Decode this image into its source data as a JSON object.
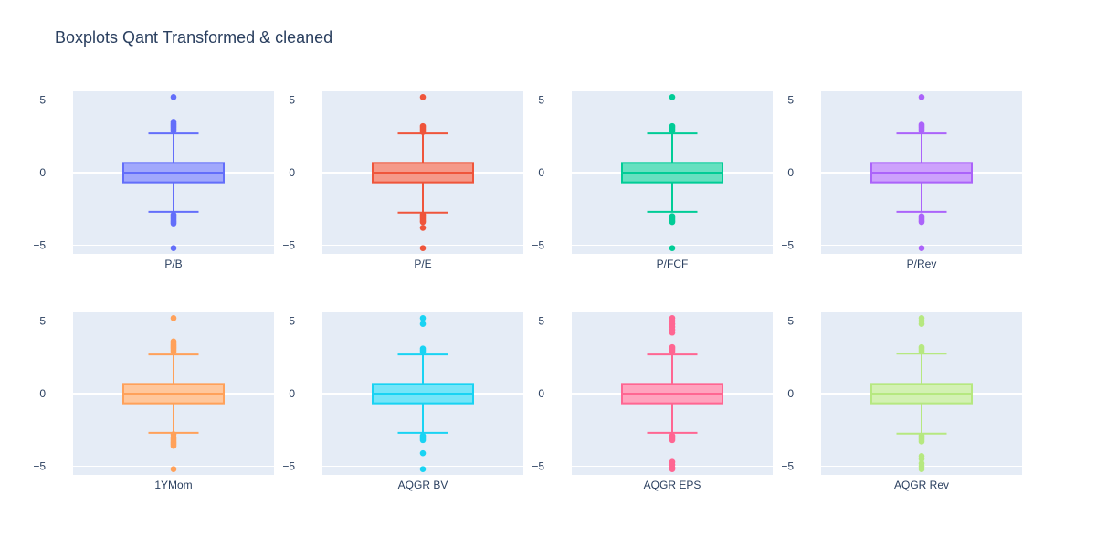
{
  "chart_data": {
    "type": "box",
    "title": "Boxplots Qant Transformed & cleaned",
    "y_ticks": [
      "5",
      "0",
      "−5"
    ],
    "y_tick_values": [
      5,
      0,
      -5
    ],
    "ylim": [
      -5.6,
      5.6
    ],
    "grid": true,
    "legend": false,
    "series": [
      {
        "name": "P/B",
        "color": "#636efa",
        "fill": "#a1a8fc",
        "q1": -0.67,
        "median": 0.0,
        "q3": 0.67,
        "lower_fence": -2.7,
        "upper_fence": 2.7,
        "outliers": [
          5.2,
          3.5,
          3.4,
          3.3,
          3.2,
          3.1,
          3.0,
          2.9,
          -2.9,
          -3.0,
          -3.1,
          -3.2,
          -3.3,
          -3.4,
          -3.5,
          -5.2
        ]
      },
      {
        "name": "P/E",
        "color": "#ef553b",
        "fill": "#f59989",
        "q1": -0.67,
        "median": 0.0,
        "q3": 0.67,
        "lower_fence": -2.75,
        "upper_fence": 2.7,
        "outliers": [
          5.2,
          3.2,
          3.1,
          3.0,
          2.9,
          2.8,
          -2.9,
          -3.0,
          -3.1,
          -3.2,
          -3.3,
          -3.4,
          -3.8,
          -5.2
        ]
      },
      {
        "name": "P/FCF",
        "color": "#00cc96",
        "fill": "#66e0c0",
        "q1": -0.67,
        "median": 0.0,
        "q3": 0.67,
        "lower_fence": -2.7,
        "upper_fence": 2.7,
        "outliers": [
          5.2,
          3.2,
          3.1,
          3.0,
          2.9,
          -3.0,
          -3.1,
          -3.2,
          -3.3,
          -3.4,
          -5.2
        ]
      },
      {
        "name": "P/Rev",
        "color": "#ab63fa",
        "fill": "#cda1fc",
        "q1": -0.67,
        "median": 0.0,
        "q3": 0.67,
        "lower_fence": -2.7,
        "upper_fence": 2.7,
        "outliers": [
          5.2,
          3.3,
          3.2,
          3.1,
          3.0,
          2.9,
          -3.0,
          -3.1,
          -3.2,
          -3.3,
          -3.4,
          -5.2
        ]
      },
      {
        "name": "1YMom",
        "color": "#ffa15a",
        "fill": "#ffc79c",
        "q1": -0.67,
        "median": 0.0,
        "q3": 0.67,
        "lower_fence": -2.7,
        "upper_fence": 2.7,
        "outliers": [
          5.2,
          3.6,
          3.5,
          3.4,
          3.3,
          3.2,
          3.1,
          3.0,
          2.9,
          -2.8,
          -3.0,
          -3.1,
          -3.2,
          -3.3,
          -3.4,
          -3.5,
          -3.6,
          -5.2
        ]
      },
      {
        "name": "AQGR BV",
        "color": "#19d3f3",
        "fill": "#75e5f8",
        "q1": -0.67,
        "median": 0.0,
        "q3": 0.67,
        "lower_fence": -2.7,
        "upper_fence": 2.7,
        "outliers": [
          5.2,
          4.8,
          3.1,
          3.0,
          2.9,
          -2.9,
          -3.0,
          -3.1,
          -3.2,
          -4.1,
          -5.2
        ]
      },
      {
        "name": "AQGR EPS",
        "color": "#ff6692",
        "fill": "#ffa3be",
        "q1": -0.67,
        "median": 0.0,
        "q3": 0.67,
        "lower_fence": -2.7,
        "upper_fence": 2.7,
        "outliers": [
          5.2,
          5.0,
          4.8,
          4.6,
          4.4,
          4.2,
          3.2,
          3.1,
          3.0,
          2.9,
          -2.9,
          -3.0,
          -3.1,
          -3.2,
          -4.7,
          -4.9,
          -5.1,
          -5.2
        ]
      },
      {
        "name": "AQGR Rev",
        "color": "#b6e880",
        "fill": "#d3f1b3",
        "q1": -0.67,
        "median": 0.0,
        "q3": 0.67,
        "lower_fence": -2.75,
        "upper_fence": 2.75,
        "outliers": [
          5.2,
          5.0,
          4.8,
          3.2,
          3.1,
          3.0,
          2.9,
          -2.9,
          -3.0,
          -3.1,
          -3.2,
          -3.3,
          -4.3,
          -4.5,
          -4.8,
          -5.0,
          -5.2
        ]
      }
    ]
  }
}
